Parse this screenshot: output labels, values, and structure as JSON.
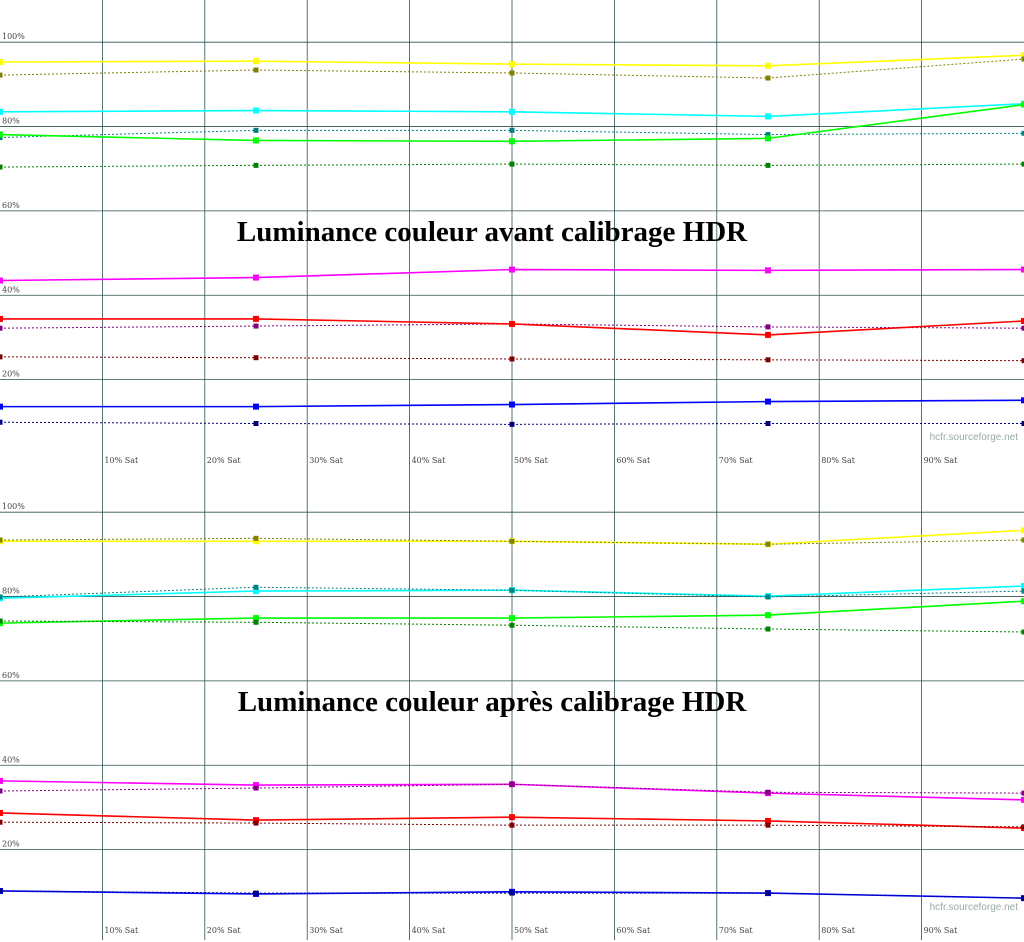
{
  "chart_data": [
    {
      "type": "line",
      "title": "Luminance couleur avant calibrage HDR",
      "watermark": "hcfr.sourceforge.net",
      "x": [
        0,
        25,
        50,
        75,
        100
      ],
      "xlim": [
        0,
        100
      ],
      "xticks": [
        {
          "value": 10,
          "label": "10% Sat"
        },
        {
          "value": 20,
          "label": "20% Sat"
        },
        {
          "value": 30,
          "label": "30% Sat"
        },
        {
          "value": 40,
          "label": "40% Sat"
        },
        {
          "value": 50,
          "label": "50% Sat"
        },
        {
          "value": 60,
          "label": "60% Sat"
        },
        {
          "value": 70,
          "label": "70% Sat"
        },
        {
          "value": 80,
          "label": "80% Sat"
        },
        {
          "value": 90,
          "label": "90% Sat"
        }
      ],
      "ylim": [
        0,
        110
      ],
      "yticks": [
        {
          "value": 20,
          "label": "20%"
        },
        {
          "value": 40,
          "label": "40%"
        },
        {
          "value": 60,
          "label": "60%"
        },
        {
          "value": 80,
          "label": "80%"
        },
        {
          "value": 100,
          "label": "100%"
        }
      ],
      "grid": true,
      "series": [
        {
          "color": "#ffff00",
          "style": "solid",
          "values": [
            95.3,
            95.5,
            94.8,
            94.4,
            96.9
          ]
        },
        {
          "color": "#808000",
          "style": "dotted",
          "values": [
            92.2,
            93.4,
            92.7,
            91.5,
            96.0
          ]
        },
        {
          "color": "#00ffff",
          "style": "solid",
          "values": [
            83.5,
            83.8,
            83.5,
            82.4,
            85.4
          ]
        },
        {
          "color": "#008080",
          "style": "dotted",
          "values": [
            77.4,
            79.1,
            79.1,
            78.1,
            78.4
          ]
        },
        {
          "color": "#00ff00",
          "style": "solid",
          "values": [
            78.1,
            76.7,
            76.5,
            77.2,
            85.2
          ]
        },
        {
          "color": "#008000",
          "style": "dotted",
          "values": [
            70.4,
            70.8,
            71.1,
            70.8,
            71.1
          ]
        },
        {
          "color": "#ff00ff",
          "style": "solid",
          "values": [
            43.5,
            44.2,
            46.1,
            45.9,
            46.1
          ]
        },
        {
          "color": "#800080",
          "style": "dotted",
          "values": [
            32.2,
            32.7,
            33.2,
            32.5,
            32.2
          ]
        },
        {
          "color": "#ff0000",
          "style": "solid",
          "values": [
            34.4,
            34.4,
            33.2,
            30.6,
            33.9
          ]
        },
        {
          "color": "#800000",
          "style": "dotted",
          "values": [
            25.4,
            25.2,
            24.9,
            24.7,
            24.5
          ]
        },
        {
          "color": "#0000ff",
          "style": "solid",
          "values": [
            13.6,
            13.6,
            14.1,
            14.8,
            15.1
          ]
        },
        {
          "color": "#000080",
          "style": "dotted",
          "values": [
            9.9,
            9.6,
            9.4,
            9.6,
            9.6
          ]
        }
      ]
    },
    {
      "type": "line",
      "title": "Luminance couleur après calibrage HDR",
      "watermark": "hcfr.sourceforge.net",
      "x": [
        0,
        25,
        50,
        75,
        100
      ],
      "xlim": [
        0,
        100
      ],
      "xticks": [
        {
          "value": 10,
          "label": "10% Sat"
        },
        {
          "value": 20,
          "label": "20% Sat"
        },
        {
          "value": 30,
          "label": "30% Sat"
        },
        {
          "value": 40,
          "label": "40% Sat"
        },
        {
          "value": 50,
          "label": "50% Sat"
        },
        {
          "value": 60,
          "label": "60% Sat"
        },
        {
          "value": 70,
          "label": "70% Sat"
        },
        {
          "value": 80,
          "label": "80% Sat"
        },
        {
          "value": 90,
          "label": "90% Sat"
        }
      ],
      "ylim": [
        0,
        110
      ],
      "yticks": [
        {
          "value": 20,
          "label": "20%"
        },
        {
          "value": 40,
          "label": "40%"
        },
        {
          "value": 60,
          "label": "60%"
        },
        {
          "value": 80,
          "label": "80%"
        },
        {
          "value": 100,
          "label": "100%"
        }
      ],
      "grid": true,
      "series": [
        {
          "color": "#ffff00",
          "style": "solid",
          "values": [
            93.1,
            93.1,
            93.1,
            92.4,
            95.7
          ]
        },
        {
          "color": "#808000",
          "style": "dotted",
          "values": [
            93.4,
            93.8,
            93.1,
            92.4,
            93.4
          ]
        },
        {
          "color": "#00ffff",
          "style": "solid",
          "values": [
            79.6,
            81.3,
            81.5,
            80.1,
            82.5
          ]
        },
        {
          "color": "#008080",
          "style": "dotted",
          "values": [
            79.9,
            82.2,
            81.5,
            79.9,
            81.3
          ]
        },
        {
          "color": "#00ff00",
          "style": "solid",
          "values": [
            73.7,
            74.9,
            74.9,
            75.6,
            78.9
          ]
        },
        {
          "color": "#008000",
          "style": "dotted",
          "values": [
            74.2,
            73.9,
            73.2,
            72.3,
            71.6
          ]
        },
        {
          "color": "#ff00ff",
          "style": "solid",
          "values": [
            36.3,
            35.3,
            35.5,
            33.4,
            31.8
          ]
        },
        {
          "color": "#800080",
          "style": "dotted",
          "values": [
            33.9,
            34.6,
            35.5,
            33.6,
            33.4
          ]
        },
        {
          "color": "#ff0000",
          "style": "solid",
          "values": [
            28.7,
            27.0,
            27.7,
            26.8,
            25.1
          ]
        },
        {
          "color": "#800000",
          "style": "dotted",
          "values": [
            26.5,
            26.3,
            25.8,
            25.8,
            25.4
          ]
        },
        {
          "color": "#0000ff",
          "style": "solid",
          "values": [
            10.2,
            9.5,
            10.0,
            9.7,
            8.5
          ]
        },
        {
          "color": "#000080",
          "style": "dotted",
          "values": [
            10.2,
            9.7,
            9.7,
            9.7,
            8.5
          ]
        }
      ]
    }
  ]
}
